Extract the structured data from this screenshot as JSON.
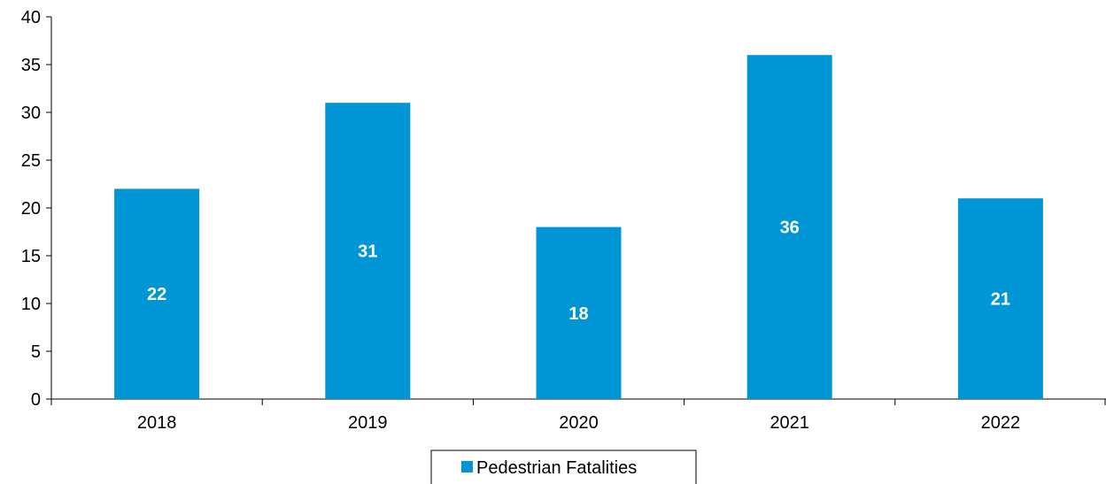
{
  "chart_data": {
    "type": "bar",
    "categories": [
      "2018",
      "2019",
      "2020",
      "2021",
      "2022"
    ],
    "series": [
      {
        "name": "Pedestrian Fatalities",
        "values": [
          22,
          31,
          18,
          36,
          21
        ],
        "color": "#0096d6"
      }
    ],
    "data_labels": [
      "22",
      "31",
      "18",
      "36",
      "21"
    ],
    "title": "",
    "xlabel": "",
    "ylabel": "",
    "ylim": [
      0,
      40
    ],
    "yticks": [
      0,
      5,
      10,
      15,
      20,
      25,
      30,
      35,
      40
    ],
    "ytick_labels": [
      "0",
      "5",
      "10",
      "15",
      "20",
      "25",
      "30",
      "35",
      "40"
    ],
    "grid": false,
    "legend": {
      "position": "bottom-center",
      "label": "Pedestrian Fatalities"
    }
  }
}
